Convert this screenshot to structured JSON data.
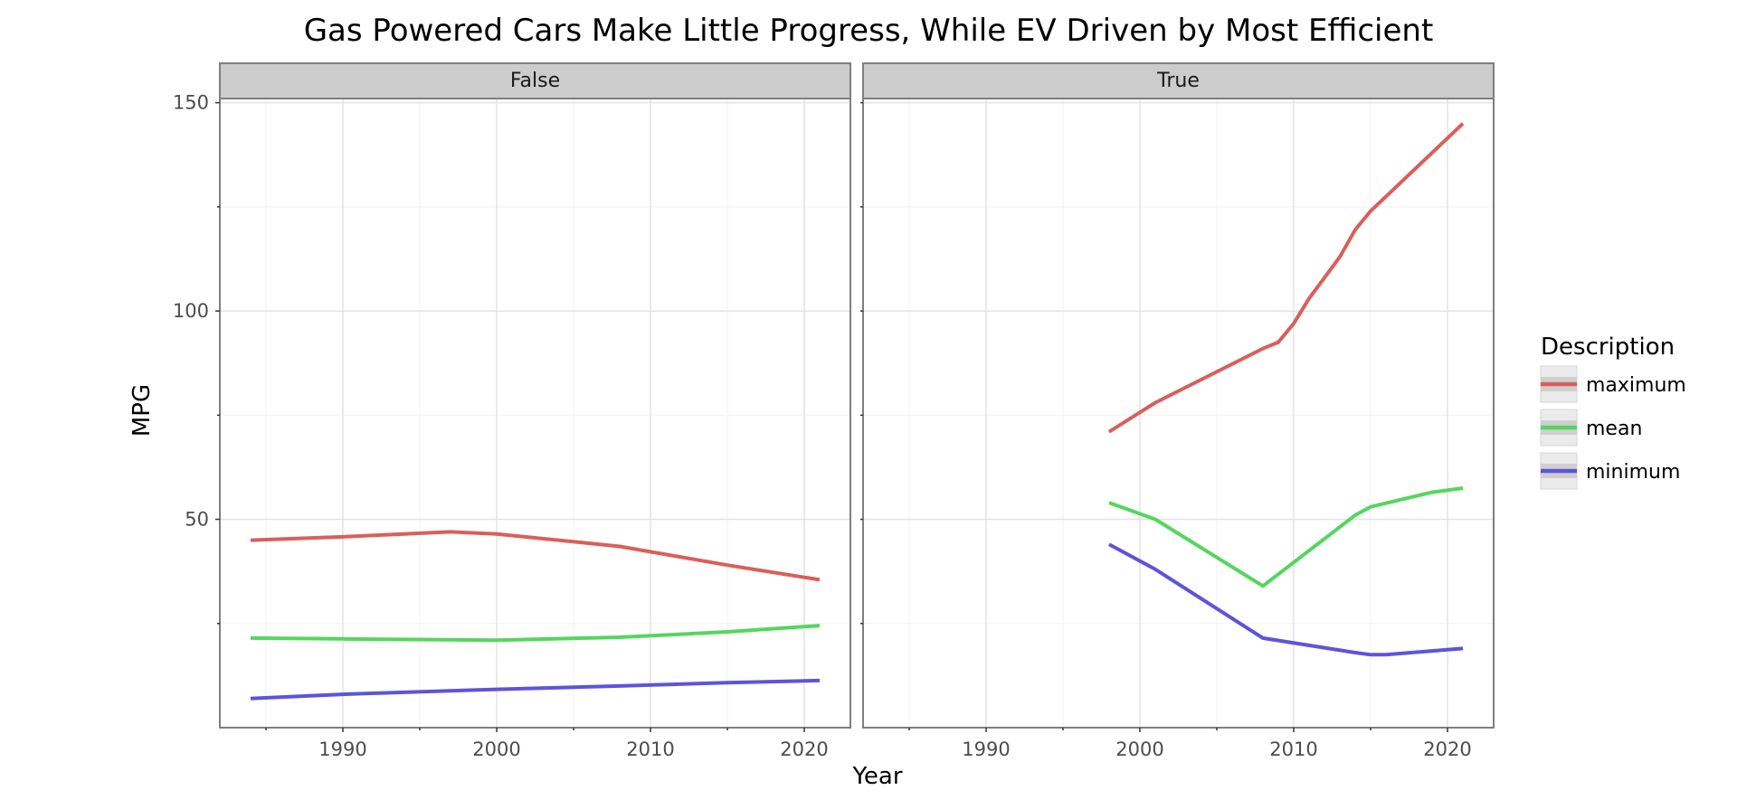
{
  "chart_data": {
    "type": "line",
    "title": "Gas Powered Cars Make Little Progress, While EV Driven by Most Efficient",
    "xlabel": "Year",
    "ylabel": "MPG",
    "xlim": [
      1982,
      2023
    ],
    "ylim": [
      0,
      151
    ],
    "x_ticks": [
      1990,
      2000,
      2010,
      2020
    ],
    "x_minor_ticks": [
      1985,
      1995,
      2005,
      2015
    ],
    "y_ticks": [
      50,
      100,
      150
    ],
    "y_minor_ticks": [
      25,
      75,
      125
    ],
    "grid": true,
    "legend_position": "right",
    "legend_title": "Description",
    "series_styles": [
      {
        "name": "maximum",
        "color": "#d95f5a"
      },
      {
        "name": "mean",
        "color": "#54d65f"
      },
      {
        "name": "minimum",
        "color": "#5c55d9"
      }
    ],
    "panels": [
      {
        "label": "False",
        "series": [
          {
            "name": "maximum",
            "x": [
              1984,
              1990,
              1997,
              2000,
              2008,
              2015,
              2021
            ],
            "values": [
              45,
              45.8,
              47,
              46.5,
              43.5,
              39,
              35.5
            ]
          },
          {
            "name": "mean",
            "x": [
              1984,
              1990,
              2000,
              2008,
              2015,
              2021
            ],
            "values": [
              21.5,
              21.3,
              21,
              21.7,
              23,
              24.5
            ]
          },
          {
            "name": "minimum",
            "x": [
              1984,
              1990,
              2000,
              2008,
              2015,
              2021
            ],
            "values": [
              7,
              8,
              9.2,
              10,
              10.8,
              11.3
            ]
          }
        ]
      },
      {
        "label": "True",
        "series": [
          {
            "name": "maximum",
            "x": [
              1998,
              2001,
              2008,
              2009,
              2010,
              2011,
              2013,
              2014,
              2015,
              2021
            ],
            "values": [
              71,
              78,
              91,
              92.5,
              97,
              103,
              113,
              119.5,
              124,
              145
            ]
          },
          {
            "name": "mean",
            "x": [
              1998,
              2001,
              2008,
              2014,
              2015,
              2019,
              2021
            ],
            "values": [
              54,
              50,
              34,
              51,
              53,
              56.5,
              57.5
            ]
          },
          {
            "name": "minimum",
            "x": [
              1998,
              2001,
              2008,
              2014,
              2015,
              2016,
              2021
            ],
            "values": [
              44,
              38,
              21.5,
              18,
              17.5,
              17.5,
              19
            ]
          }
        ]
      }
    ]
  }
}
